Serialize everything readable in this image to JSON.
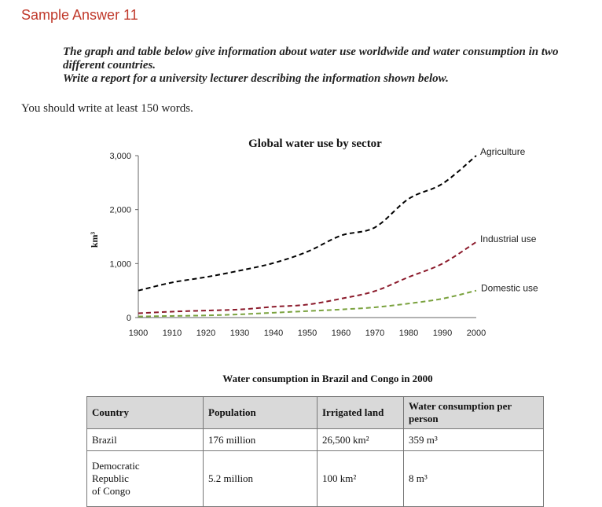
{
  "page": {
    "heading": "Sample Answer 11",
    "prompt_line1": "The graph and table below give information about water use worldwide and water consumption in two different countries.",
    "prompt_line2": "Write a report for a university lecturer describing the information shown below.",
    "instruction": "You should write at least 150 words."
  },
  "chart_data": {
    "type": "line",
    "title": "Global water use by sector",
    "xlabel": "",
    "ylabel": "km³",
    "xlim": [
      1900,
      2000
    ],
    "ylim": [
      0,
      3000
    ],
    "x_ticks": [
      "1900",
      "1910",
      "1920",
      "1930",
      "1940",
      "1950",
      "1960",
      "1970",
      "1980",
      "1990",
      "2000"
    ],
    "y_ticks": [
      "0",
      "1,000",
      "2,000",
      "3,000"
    ],
    "x": [
      1900,
      1910,
      1920,
      1930,
      1940,
      1950,
      1960,
      1970,
      1980,
      1990,
      2000
    ],
    "series": [
      {
        "name": "Agriculture",
        "color": "#000000",
        "values": [
          500,
          650,
          750,
          870,
          1010,
          1220,
          1520,
          1670,
          2200,
          2480,
          3000
        ]
      },
      {
        "name": "Industrial use",
        "color": "#8b1a2b",
        "values": [
          80,
          110,
          130,
          150,
          200,
          240,
          350,
          490,
          750,
          1000,
          1400
        ]
      },
      {
        "name": "Domestic use",
        "color": "#7aa23e",
        "values": [
          20,
          30,
          40,
          60,
          90,
          120,
          150,
          190,
          260,
          350,
          500
        ]
      }
    ],
    "grid": false
  },
  "table": {
    "title": "Water consumption in Brazil and Congo in 2000",
    "headers": [
      "Country",
      "Population",
      "Irrigated land",
      "Water consumption per person"
    ],
    "rows": [
      {
        "country": "Brazil",
        "population": "176 million",
        "irrigated": "26,500 km²",
        "consumption": "359 m³"
      },
      {
        "country_line1": "Democratic",
        "country_line2": "Republic",
        "country_line3": "of Congo",
        "population": "5.2 million",
        "irrigated": "100 km²",
        "consumption": "8 m³"
      }
    ]
  }
}
